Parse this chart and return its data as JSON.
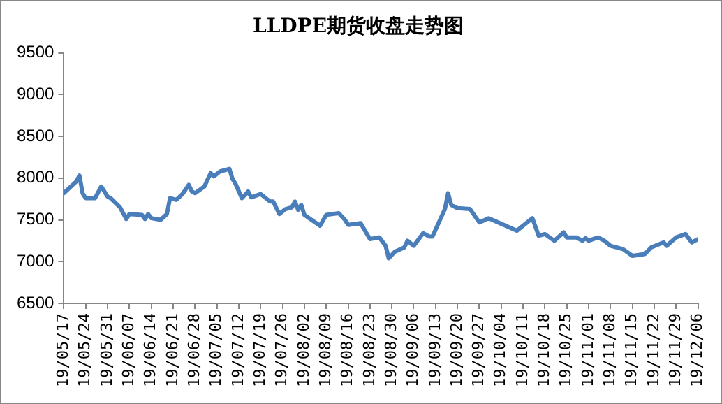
{
  "chart_data": {
    "type": "line",
    "title": "LLDPE期货收盘走势图",
    "x": [
      "--05-17",
      "--05-21",
      "--05-22",
      "--05-23",
      "--05-24",
      "--05-27",
      "--05-29",
      "--05-31",
      "--06-01",
      "--06-04",
      "--06-06",
      "--06-07",
      "--06-11",
      "--06-12",
      "--06-13",
      "--06-14",
      "--06-17",
      "--06-19",
      "--06-20",
      "--06-22",
      "--06-24",
      "--06-26",
      "--06-27",
      "--06-28",
      "--07-01",
      "--07-03",
      "--07-04",
      "--07-06",
      "--07-09",
      "--07-10",
      "--07-11",
      "--07-13",
      "--07-15",
      "--07-16",
      "--07-19",
      "--07-22",
      "--07-23",
      "--07-25",
      "--07-27",
      "--07-29",
      "--07-30",
      "--07-31",
      "--08-01",
      "--08-02",
      "--08-07",
      "--08-09",
      "--08-13",
      "--08-15",
      "--08-16",
      "--08-20",
      "--08-23",
      "--08-26",
      "--08-28",
      "--08-29",
      "--08-31",
      "--09-03",
      "--09-04",
      "--09-06",
      "--09-09",
      "--09-11",
      "--09-12",
      "--09-16",
      "--09-17",
      "--09-18",
      "--09-20",
      "--09-24",
      "--09-27",
      "--09-30",
      "--10-09",
      "--10-14",
      "--10-16",
      "--10-18",
      "--10-21",
      "--10-24",
      "--10-25",
      "--10-28",
      "--10-30",
      "--10-31",
      "--11-01",
      "--11-04",
      "--11-06",
      "--11-08",
      "--11-12",
      "--11-15",
      "--11-19",
      "--11-21",
      "--11-25",
      "--11-26",
      "--11-29",
      "--12-02",
      "--12-04",
      "--12-06"
    ],
    "series": [
      {
        "color": "#4a7ebb",
        "values": [
          7820,
          7960,
          8030,
          7820,
          7760,
          7760,
          7900,
          7780,
          7760,
          7650,
          7510,
          7570,
          7560,
          7510,
          7570,
          7520,
          7500,
          7570,
          7760,
          7740,
          7810,
          7920,
          7840,
          7820,
          7900,
          8060,
          8020,
          8080,
          8110,
          7990,
          7930,
          7760,
          7840,
          7770,
          7810,
          7720,
          7720,
          7570,
          7630,
          7650,
          7720,
          7620,
          7680,
          7560,
          7430,
          7560,
          7580,
          7500,
          7440,
          7460,
          7270,
          7290,
          7190,
          7040,
          7120,
          7170,
          7250,
          7190,
          7340,
          7300,
          7300,
          7630,
          7820,
          7680,
          7640,
          7630,
          7470,
          7520,
          7370,
          7520,
          7310,
          7330,
          7250,
          7350,
          7290,
          7290,
          7250,
          7280,
          7250,
          7290,
          7250,
          7190,
          7150,
          7070,
          7090,
          7170,
          7230,
          7190,
          7290,
          7330,
          7230,
          7270
        ]
      }
    ],
    "xlim": [
      "--05-17",
      "--12-06"
    ],
    "xticks": [
      {
        "value": "--05-17",
        "label": "19/05/17"
      },
      {
        "value": "--05-24",
        "label": "19/05/24"
      },
      {
        "value": "--05-31",
        "label": "19/05/31"
      },
      {
        "value": "--06-07",
        "label": "19/06/07"
      },
      {
        "value": "--06-14",
        "label": "19/06/14"
      },
      {
        "value": "--06-21",
        "label": "19/06/21"
      },
      {
        "value": "--06-28",
        "label": "19/06/28"
      },
      {
        "value": "--07-05",
        "label": "19/07/05"
      },
      {
        "value": "--07-12",
        "label": "19/07/12"
      },
      {
        "value": "--07-19",
        "label": "19/07/19"
      },
      {
        "value": "--07-26",
        "label": "19/07/26"
      },
      {
        "value": "--08-02",
        "label": "19/08/02"
      },
      {
        "value": "--08-09",
        "label": "19/08/09"
      },
      {
        "value": "--08-16",
        "label": "19/08/16"
      },
      {
        "value": "--08-23",
        "label": "19/08/23"
      },
      {
        "value": "--08-30",
        "label": "19/08/30"
      },
      {
        "value": "--09-06",
        "label": "19/09/06"
      },
      {
        "value": "--09-13",
        "label": "19/09/13"
      },
      {
        "value": "--09-20",
        "label": "19/09/20"
      },
      {
        "value": "--09-27",
        "label": "19/09/27"
      },
      {
        "value": "--10-04",
        "label": "19/10/04"
      },
      {
        "value": "--10-11",
        "label": "19/10/11"
      },
      {
        "value": "--10-18",
        "label": "19/10/18"
      },
      {
        "value": "--10-25",
        "label": "19/10/25"
      },
      {
        "value": "--11-01",
        "label": "19/11/01"
      },
      {
        "value": "--11-08",
        "label": "19/11/08"
      },
      {
        "value": "--11-15",
        "label": "19/11/15"
      },
      {
        "value": "--11-22",
        "label": "19/11/22"
      },
      {
        "value": "--11-29",
        "label": "19/11/29"
      },
      {
        "value": "--12-06",
        "label": "19/12/06"
      }
    ],
    "ylim": [
      6500,
      9500
    ],
    "yticks": [
      6500,
      7000,
      7500,
      8000,
      8500,
      9000,
      9500
    ],
    "marker": "none",
    "line_style": "solid"
  }
}
